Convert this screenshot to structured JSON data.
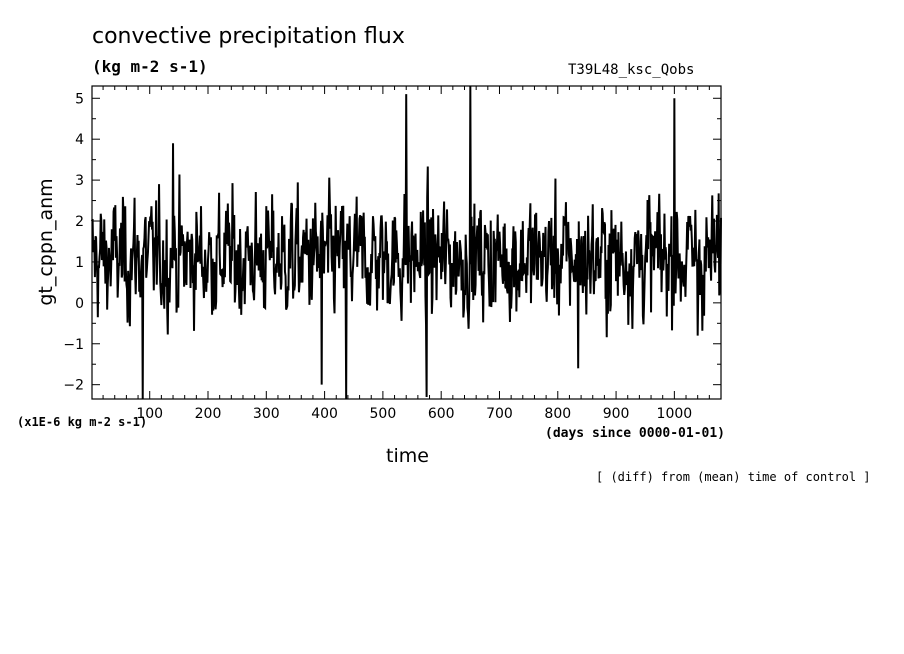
{
  "header": {
    "title": "convective precipitation flux",
    "units": "(kg m-2 s-1)",
    "run_name": "T39L48_ksc_Qobs"
  },
  "footer": {
    "xlabel": "time",
    "y_units_note": "(x1E-6 kg m-2 s-1)",
    "x_units_note": "(days since 0000-01-01)",
    "operation_note": "[ (diff) from (mean) time of control ]"
  },
  "chart_data": {
    "type": "line",
    "title": "convective precipitation flux",
    "xlabel": "time",
    "ylabel": "gt_cppn_anm",
    "xlim": [
      1,
      1080
    ],
    "ylim": [
      -2.35,
      5.3
    ],
    "xticks": [
      100,
      200,
      300,
      400,
      500,
      600,
      700,
      800,
      900,
      1000
    ],
    "yticks": [
      -2,
      -1,
      0,
      1,
      2,
      3,
      4,
      5
    ],
    "grid": false,
    "series": [
      {
        "sampling": "daily values approximated; daily noise regenerated by script",
        "spikes": [
          {
            "x": 88,
            "y": -2.35
          },
          {
            "x": 140,
            "y": 3.9
          },
          {
            "x": 395,
            "y": -2.0
          },
          {
            "x": 437,
            "y": -2.35
          },
          {
            "x": 540,
            "y": 5.1
          },
          {
            "x": 575,
            "y": -2.3
          },
          {
            "x": 650,
            "y": 5.3
          },
          {
            "x": 835,
            "y": -1.6
          },
          {
            "x": 1000,
            "y": 5.0
          },
          {
            "x": 1040,
            "y": -0.8
          }
        ],
        "mean": 1.1,
        "std": 1.0
      }
    ]
  }
}
